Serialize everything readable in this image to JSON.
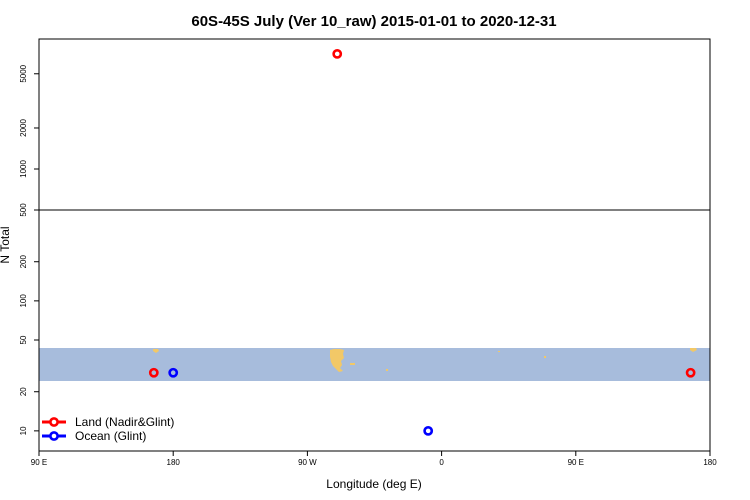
{
  "chart_data": {
    "type": "scatter",
    "title": "60S-45S July (Ver 10_raw)   2015-01-01 to 2020-12-31",
    "xlabel": "Longitude (deg E)",
    "ylabel": "N Total",
    "x_ticks": [
      {
        "value": 90,
        "label": "90 E"
      },
      {
        "value": 180,
        "label": "180"
      },
      {
        "value": 270,
        "label": "90 W"
      },
      {
        "value": 360,
        "label": "0"
      },
      {
        "value": 450,
        "label": "90 E"
      },
      {
        "value": 540,
        "label": "180"
      }
    ],
    "xlim": [
      90,
      540
    ],
    "y_scale": "log",
    "y_ticks": [
      10,
      20,
      50,
      100,
      200,
      500,
      1000,
      2000,
      5000
    ],
    "ylim": [
      7,
      9000
    ],
    "series": [
      {
        "name": "Land (Nadir&Glint)",
        "color": "#ff0000",
        "points": [
          {
            "x": 167,
            "y": 28
          },
          {
            "x": 290,
            "y": 7000
          },
          {
            "x": 527,
            "y": 28
          }
        ]
      },
      {
        "name": "Ocean (Glint)",
        "color": "#0000ff",
        "points": [
          {
            "x": 180,
            "y": 28
          },
          {
            "x": 351,
            "y": 10
          }
        ]
      }
    ],
    "legend_position": "bottom-left",
    "background_map": {
      "latitude_band": "60S-45S",
      "ocean_color": "#a7bcdc",
      "land_color": "#f2c867"
    }
  }
}
